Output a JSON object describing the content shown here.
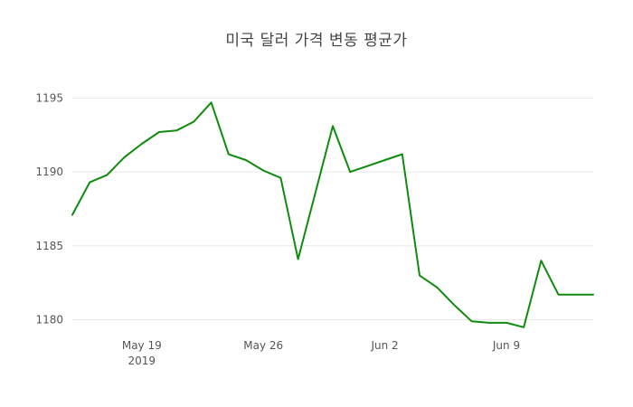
{
  "chart_data": {
    "type": "line",
    "title": "미국 달러 가격 변동 평균가",
    "x": [
      "May 15",
      "May 16",
      "May 17",
      "May 18",
      "May 19",
      "May 20",
      "May 21",
      "May 22",
      "May 23",
      "May 24",
      "May 25",
      "May 26",
      "May 27",
      "May 28",
      "May 29",
      "May 30",
      "May 31",
      "Jun 1",
      "Jun 2",
      "Jun 3",
      "Jun 4",
      "Jun 5",
      "Jun 6",
      "Jun 7",
      "Jun 8",
      "Jun 9",
      "Jun 10",
      "Jun 11",
      "Jun 12",
      "Jun 13",
      "Jun 14"
    ],
    "values": [
      1187.1,
      1189.3,
      1189.8,
      1191.0,
      1191.9,
      1192.7,
      1192.8,
      1193.4,
      1194.7,
      1191.2,
      1190.8,
      1190.1,
      1189.6,
      1184.1,
      1188.6,
      1193.1,
      1190.0,
      1190.4,
      1190.8,
      1191.2,
      1183.0,
      1182.2,
      1181.0,
      1179.9,
      1179.8,
      1179.8,
      1179.5,
      1184.0,
      1181.7,
      1181.7,
      1181.7
    ],
    "ylim": [
      1179,
      1196
    ],
    "yticks": [
      1180,
      1185,
      1190,
      1195
    ],
    "xticks": [
      {
        "label": "May 19",
        "sublabel": "2019",
        "index": 4
      },
      {
        "label": "May 26",
        "sublabel": "",
        "index": 11
      },
      {
        "label": "Jun 2",
        "sublabel": "",
        "index": 18
      },
      {
        "label": "Jun 9",
        "sublabel": "",
        "index": 25
      }
    ],
    "grid": true,
    "legend": "none",
    "line_color": "#0f8b0f",
    "grid_color": "#e6e6e6",
    "tick_text_color": "#555555",
    "title_color": "#444444",
    "background_color": "#ffffff"
  }
}
